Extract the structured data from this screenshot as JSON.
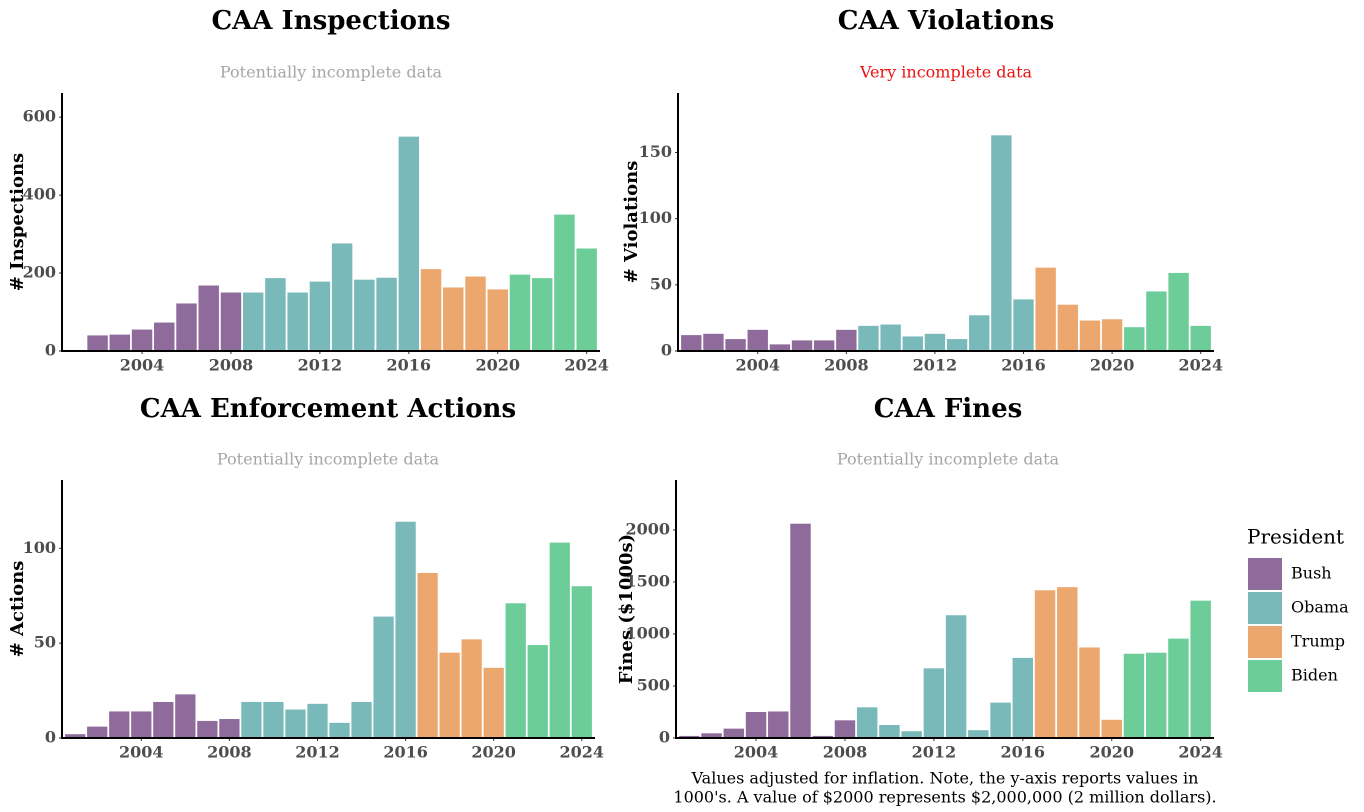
{
  "chart_data": [
    {
      "type": "bar",
      "title": "CAA Inspections",
      "subtitle": "Potentially incomplete data",
      "subtitle_color": "#a6a6a6",
      "ylabel": "# Inspections",
      "xlim": [
        2000.4,
        2024.6
      ],
      "xticks": [
        2004,
        2008,
        2012,
        2016,
        2020,
        2024
      ],
      "ylim": [
        0,
        662
      ],
      "yticks": [
        0,
        200,
        400,
        600
      ],
      "grid": false,
      "series": [
        {
          "name": "Bush",
          "color": "#8e6b9b",
          "x": [
            2002,
            2003,
            2004,
            2005,
            2006,
            2007,
            2008
          ],
          "values": [
            40,
            42,
            55,
            73,
            122,
            168,
            150
          ]
        },
        {
          "name": "Obama",
          "color": "#79b9ba",
          "x": [
            2009,
            2010,
            2011,
            2012,
            2013,
            2014,
            2015,
            2016
          ],
          "values": [
            150,
            187,
            150,
            178,
            276,
            183,
            188,
            550
          ]
        },
        {
          "name": "Trump",
          "color": "#eba76e",
          "x": [
            2017,
            2018,
            2019,
            2020
          ],
          "values": [
            210,
            163,
            191,
            158
          ]
        },
        {
          "name": "Biden",
          "color": "#6ccd99",
          "x": [
            2021,
            2022,
            2023,
            2024
          ],
          "values": [
            196,
            187,
            350,
            263
          ]
        }
      ]
    },
    {
      "type": "bar",
      "title": "CAA Violations",
      "subtitle": "Very incomplete data",
      "subtitle_color": "#ee1111",
      "ylabel": "# Violations",
      "xlim": [
        2000.4,
        2024.6
      ],
      "xticks": [
        2004,
        2008,
        2012,
        2016,
        2020,
        2024
      ],
      "ylim": [
        0,
        195
      ],
      "yticks": [
        0,
        50,
        100,
        150
      ],
      "grid": false,
      "series": [
        {
          "name": "Bush",
          "color": "#8e6b9b",
          "x": [
            2001,
            2002,
            2003,
            2004,
            2005,
            2006,
            2007,
            2008
          ],
          "values": [
            12,
            13,
            9,
            16,
            5,
            8,
            8,
            16
          ]
        },
        {
          "name": "Obama",
          "color": "#79b9ba",
          "x": [
            2009,
            2010,
            2011,
            2012,
            2013,
            2014,
            2015,
            2016
          ],
          "values": [
            19,
            20,
            11,
            13,
            9,
            27,
            163,
            39
          ]
        },
        {
          "name": "Trump",
          "color": "#eba76e",
          "x": [
            2017,
            2018,
            2019,
            2020
          ],
          "values": [
            63,
            35,
            23,
            24
          ]
        },
        {
          "name": "Biden",
          "color": "#6ccd99",
          "x": [
            2021,
            2022,
            2023,
            2024
          ],
          "values": [
            18,
            45,
            59,
            19
          ]
        }
      ]
    },
    {
      "type": "bar",
      "title": "CAA Enforcement Actions",
      "subtitle": "Potentially incomplete data",
      "subtitle_color": "#a6a6a6",
      "ylabel": "# Actions",
      "xlim": [
        2000.4,
        2024.6
      ],
      "xticks": [
        2004,
        2008,
        2012,
        2016,
        2020,
        2024
      ],
      "ylim": [
        0,
        136
      ],
      "yticks": [
        0,
        50,
        100
      ],
      "grid": false,
      "series": [
        {
          "name": "Bush",
          "color": "#8e6b9b",
          "x": [
            2001,
            2002,
            2003,
            2004,
            2005,
            2006,
            2007,
            2008
          ],
          "values": [
            2,
            6,
            14,
            14,
            19,
            23,
            9,
            10
          ]
        },
        {
          "name": "Obama",
          "color": "#79b9ba",
          "x": [
            2009,
            2010,
            2011,
            2012,
            2013,
            2014,
            2015,
            2016
          ],
          "values": [
            19,
            19,
            15,
            18,
            8,
            19,
            64,
            114
          ]
        },
        {
          "name": "Trump",
          "color": "#eba76e",
          "x": [
            2017,
            2018,
            2019,
            2020
          ],
          "values": [
            87,
            45,
            52,
            37
          ]
        },
        {
          "name": "Biden",
          "color": "#6ccd99",
          "x": [
            2021,
            2022,
            2023,
            2024
          ],
          "values": [
            71,
            49,
            103,
            80
          ]
        }
      ]
    },
    {
      "type": "bar",
      "title": "CAA Fines",
      "subtitle": "Potentially incomplete data",
      "subtitle_color": "#a6a6a6",
      "ylabel": "Fines ($1000s)",
      "xlim": [
        2000.4,
        2024.6
      ],
      "xticks": [
        2004,
        2008,
        2012,
        2016,
        2020,
        2024
      ],
      "ylim": [
        0,
        2480
      ],
      "yticks": [
        0,
        500,
        1000,
        1500,
        2000
      ],
      "grid": false,
      "series": [
        {
          "name": "Bush",
          "color": "#8e6b9b",
          "x": [
            2001,
            2002,
            2003,
            2004,
            2005,
            2006,
            2007,
            2008
          ],
          "values": [
            20,
            45,
            90,
            250,
            255,
            2060,
            20,
            170
          ]
        },
        {
          "name": "Obama",
          "color": "#79b9ba",
          "x": [
            2009,
            2010,
            2011,
            2012,
            2013,
            2014,
            2015,
            2016
          ],
          "values": [
            295,
            125,
            65,
            670,
            1180,
            75,
            340,
            770
          ]
        },
        {
          "name": "Trump",
          "color": "#eba76e",
          "x": [
            2017,
            2018,
            2019,
            2020
          ],
          "values": [
            1420,
            1450,
            870,
            175
          ]
        },
        {
          "name": "Biden",
          "color": "#6ccd99",
          "x": [
            2021,
            2022,
            2023,
            2024
          ],
          "values": [
            810,
            820,
            955,
            1320
          ]
        }
      ]
    }
  ],
  "legend_title": "President",
  "note": [
    "Values adjusted for inflation. Note, the y-axis reports values in",
    "1000's. A value of $2000 represents $2,000,000 (2 million dollars)."
  ]
}
